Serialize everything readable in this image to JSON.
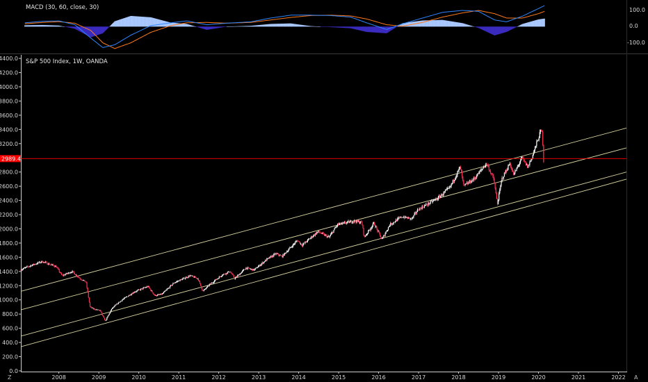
{
  "macd_panel": {
    "title": "MACD (30, 60, close, 30)",
    "y_tick_labels": [
      "100.0",
      "0.0",
      "-100.0"
    ],
    "y_tick_values": [
      100,
      0,
      -100
    ],
    "ylim": [
      -130,
      125
    ],
    "colors": {
      "macd": "#2e86ff",
      "signal": "#ff7a1a",
      "histogram_positive": "#a9c8ff",
      "histogram_negative": "#3a2bbf"
    }
  },
  "price_panel": {
    "title": "S&P 500 Index, 1W, OANDA",
    "current_price_label": "2989.4",
    "colors": {
      "up": "#ffffff",
      "down": "#ff3355",
      "price_line": "#ff0000",
      "channel": "#d8d4a0",
      "background": "#000000",
      "axis": "#cfcfcf"
    }
  },
  "bottom_bar": {
    "left_label": "Z",
    "right_label": "A"
  },
  "chart_data": [
    {
      "type": "line",
      "title": "MACD (30, 60, close, 30)",
      "x": [
        2007.15,
        2007.6,
        2008.0,
        2008.4,
        2008.8,
        2009.1,
        2009.4,
        2009.8,
        2010.3,
        2010.8,
        2011.2,
        2011.7,
        2012.2,
        2012.8,
        2013.3,
        2013.8,
        2014.3,
        2014.8,
        2015.3,
        2015.7,
        2016.2,
        2016.6,
        2017.1,
        2017.6,
        2018.1,
        2018.5,
        2018.9,
        2019.2,
        2019.6,
        2020.0,
        2020.15
      ],
      "series": [
        {
          "name": "MACD",
          "values": [
            20,
            28,
            30,
            10,
            -60,
            -110,
            -95,
            -45,
            5,
            20,
            30,
            10,
            18,
            25,
            45,
            60,
            60,
            58,
            50,
            20,
            -15,
            15,
            45,
            75,
            85,
            80,
            35,
            25,
            55,
            95,
            110
          ]
        },
        {
          "name": "Signal",
          "values": [
            15,
            22,
            26,
            18,
            -20,
            -85,
            -115,
            -85,
            -30,
            5,
            20,
            22,
            18,
            22,
            35,
            48,
            58,
            60,
            56,
            40,
            10,
            2,
            22,
            50,
            72,
            85,
            68,
            45,
            45,
            68,
            80
          ]
        }
      ],
      "ylim": [
        -130,
        125
      ]
    },
    {
      "type": "candlestick",
      "title": "S&P 500 Index, 1W, OANDA",
      "x_tick_labels": [
        "2008",
        "2009",
        "2010",
        "2011",
        "2012",
        "2013",
        "2014",
        "2015",
        "2016",
        "2017",
        "2018",
        "2019",
        "2020",
        "2021",
        "2022"
      ],
      "x_tick_values": [
        2008,
        2009,
        2010,
        2011,
        2012,
        2013,
        2014,
        2015,
        2016,
        2017,
        2018,
        2019,
        2020,
        2021,
        2022
      ],
      "y_tick_labels": [
        "0.0",
        "200.0",
        "400.0",
        "600.0",
        "800.0",
        "1000.0",
        "1200.0",
        "1400.0",
        "1600.0",
        "1800.0",
        "2000.0",
        "2200.0",
        "2400.0",
        "2600.0",
        "2800.0",
        "3000.0",
        "3200.0",
        "3400.0",
        "3600.0",
        "3800.0",
        "4000.0",
        "4200.0",
        "4400.0"
      ],
      "y_tick_values": [
        0,
        200,
        400,
        600,
        800,
        1000,
        1200,
        1400,
        1600,
        1800,
        2000,
        2200,
        2400,
        2600,
        2800,
        3000,
        3200,
        3400,
        3600,
        3800,
        4000,
        4200,
        4400
      ],
      "xlim": [
        2007.05,
        2022.2
      ],
      "ylim": [
        -10,
        4450
      ],
      "price_anchors": [
        [
          2007.05,
          1420
        ],
        [
          2007.3,
          1480
        ],
        [
          2007.6,
          1540
        ],
        [
          2007.8,
          1500
        ],
        [
          2007.95,
          1470
        ],
        [
          2008.1,
          1340
        ],
        [
          2008.35,
          1400
        ],
        [
          2008.55,
          1300
        ],
        [
          2008.7,
          1250
        ],
        [
          2008.8,
          900
        ],
        [
          2008.9,
          870
        ],
        [
          2009.05,
          850
        ],
        [
          2009.18,
          700
        ],
        [
          2009.35,
          880
        ],
        [
          2009.6,
          1000
        ],
        [
          2009.9,
          1110
        ],
        [
          2010.25,
          1190
        ],
        [
          2010.42,
          1060
        ],
        [
          2010.6,
          1080
        ],
        [
          2010.9,
          1240
        ],
        [
          2011.3,
          1340
        ],
        [
          2011.5,
          1300
        ],
        [
          2011.62,
          1120
        ],
        [
          2011.8,
          1220
        ],
        [
          2012.1,
          1350
        ],
        [
          2012.3,
          1400
        ],
        [
          2012.42,
          1300
        ],
        [
          2012.7,
          1450
        ],
        [
          2012.9,
          1420
        ],
        [
          2013.2,
          1560
        ],
        [
          2013.45,
          1650
        ],
        [
          2013.6,
          1610
        ],
        [
          2013.99,
          1840
        ],
        [
          2014.1,
          1770
        ],
        [
          2014.5,
          1960
        ],
        [
          2014.78,
          1880
        ],
        [
          2014.99,
          2060
        ],
        [
          2015.4,
          2110
        ],
        [
          2015.6,
          2090
        ],
        [
          2015.66,
          1880
        ],
        [
          2015.9,
          2080
        ],
        [
          2016.1,
          1850
        ],
        [
          2016.3,
          2060
        ],
        [
          2016.6,
          2170
        ],
        [
          2016.85,
          2140
        ],
        [
          2017.0,
          2270
        ],
        [
          2017.5,
          2430
        ],
        [
          2017.8,
          2580
        ],
        [
          2018.06,
          2870
        ],
        [
          2018.15,
          2600
        ],
        [
          2018.4,
          2700
        ],
        [
          2018.72,
          2920
        ],
        [
          2018.9,
          2700
        ],
        [
          2018.99,
          2350
        ],
        [
          2019.1,
          2700
        ],
        [
          2019.3,
          2920
        ],
        [
          2019.4,
          2760
        ],
        [
          2019.6,
          3000
        ],
        [
          2019.75,
          2870
        ],
        [
          2019.85,
          3000
        ],
        [
          2020.0,
          3250
        ],
        [
          2020.08,
          3390
        ],
        [
          2020.12,
          3330
        ],
        [
          2020.14,
          2960
        ]
      ],
      "current_price": 2989.4,
      "channel_lines": [
        {
          "start": [
            2007.05,
            1120
          ],
          "end": [
            2022.2,
            3420
          ]
        },
        {
          "start": [
            2007.05,
            860
          ],
          "end": [
            2022.2,
            3140
          ]
        },
        {
          "start": [
            2007.05,
            490
          ],
          "end": [
            2022.2,
            2800
          ]
        },
        {
          "start": [
            2007.05,
            340
          ],
          "end": [
            2022.2,
            2700
          ]
        }
      ]
    }
  ]
}
